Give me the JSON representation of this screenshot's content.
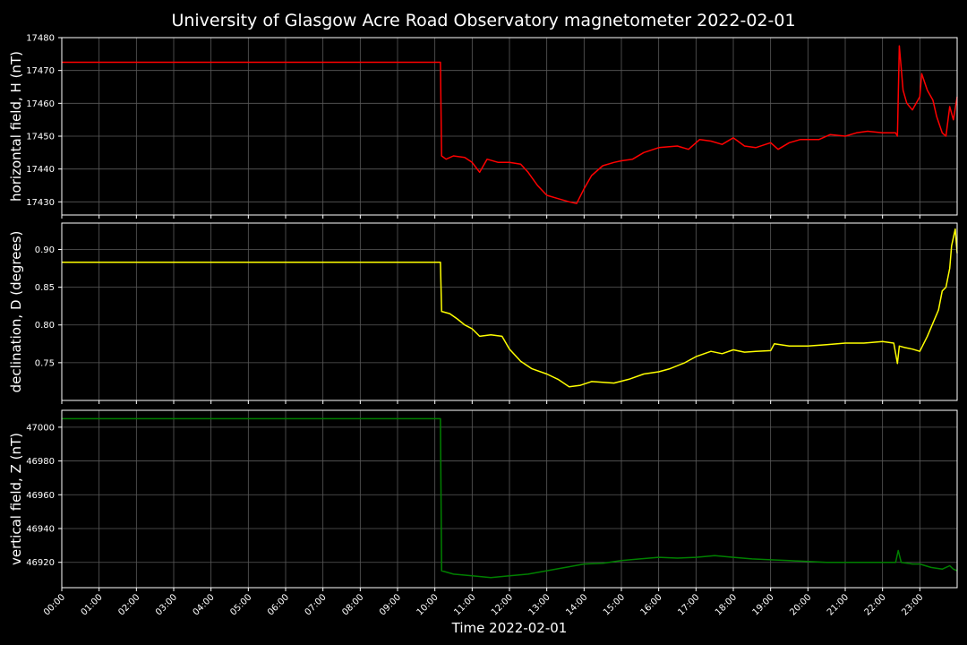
{
  "title": "University of Glasgow Acre Road Observatory magnetometer 2022-02-01",
  "xlabel": "Time 2022-02-01",
  "time_ticks": [
    "00:00",
    "01:00",
    "02:00",
    "03:00",
    "04:00",
    "05:00",
    "06:00",
    "07:00",
    "08:00",
    "09:00",
    "10:00",
    "11:00",
    "12:00",
    "13:00",
    "14:00",
    "15:00",
    "16:00",
    "17:00",
    "18:00",
    "19:00",
    "20:00",
    "21:00",
    "22:00",
    "23:00"
  ],
  "colors": {
    "background": "#000000",
    "H": "#ff0000",
    "D": "#ffff00",
    "Z": "#008000",
    "grid": "#5a5a5a"
  },
  "chart_data": [
    {
      "type": "line",
      "ylabel": "horizontal field, H (nT)",
      "ylim": [
        17426,
        17480
      ],
      "yticks": [
        17430,
        17440,
        17450,
        17460,
        17470,
        17480
      ],
      "x_range_hours": [
        0,
        24
      ],
      "x_axis": "time of day (hours)",
      "grid": true,
      "series": [
        {
          "color": "#ff0000",
          "points": [
            [
              0,
              17472.5
            ],
            [
              10.15,
              17472.5
            ],
            [
              10.18,
              17444
            ],
            [
              10.3,
              17443
            ],
            [
              10.5,
              17444
            ],
            [
              10.8,
              17443.5
            ],
            [
              11.0,
              17442
            ],
            [
              11.2,
              17439
            ],
            [
              11.4,
              17443
            ],
            [
              11.7,
              17442
            ],
            [
              12.0,
              17442
            ],
            [
              12.3,
              17441.5
            ],
            [
              12.5,
              17439
            ],
            [
              12.75,
              17435
            ],
            [
              13.0,
              17432
            ],
            [
              13.3,
              17431
            ],
            [
              13.6,
              17430
            ],
            [
              13.8,
              17429.5
            ],
            [
              14.0,
              17434
            ],
            [
              14.2,
              17438
            ],
            [
              14.5,
              17441
            ],
            [
              14.8,
              17442
            ],
            [
              15.0,
              17442.5
            ],
            [
              15.3,
              17443
            ],
            [
              15.6,
              17445
            ],
            [
              16.0,
              17446.5
            ],
            [
              16.5,
              17447
            ],
            [
              16.8,
              17446
            ],
            [
              17.1,
              17449
            ],
            [
              17.4,
              17448.5
            ],
            [
              17.7,
              17447.5
            ],
            [
              18.0,
              17449.5
            ],
            [
              18.3,
              17447
            ],
            [
              18.6,
              17446.5
            ],
            [
              19.0,
              17448
            ],
            [
              19.2,
              17446
            ],
            [
              19.5,
              17448
            ],
            [
              19.8,
              17449
            ],
            [
              20.3,
              17449
            ],
            [
              20.6,
              17450.5
            ],
            [
              21.0,
              17450
            ],
            [
              21.3,
              17451
            ],
            [
              21.6,
              17451.5
            ],
            [
              22.0,
              17451
            ],
            [
              22.35,
              17451
            ],
            [
              22.4,
              17450
            ],
            [
              22.45,
              17477.5
            ],
            [
              22.55,
              17464
            ],
            [
              22.65,
              17460
            ],
            [
              22.8,
              17458
            ],
            [
              23.0,
              17462
            ],
            [
              23.05,
              17469
            ],
            [
              23.2,
              17464
            ],
            [
              23.35,
              17461
            ],
            [
              23.45,
              17456
            ],
            [
              23.6,
              17451
            ],
            [
              23.7,
              17450
            ],
            [
              23.8,
              17459
            ],
            [
              23.9,
              17455
            ],
            [
              24.0,
              17462
            ]
          ]
        }
      ]
    },
    {
      "type": "line",
      "ylabel": "declination, D (degrees)",
      "ylim": [
        0.7,
        0.935
      ],
      "yticks": [
        0.75,
        0.8,
        0.85,
        0.9
      ],
      "x_range_hours": [
        0,
        24
      ],
      "x_axis": "time of day (hours)",
      "grid": true,
      "series": [
        {
          "color": "#ffff00",
          "points": [
            [
              0,
              0.883
            ],
            [
              10.15,
              0.883
            ],
            [
              10.18,
              0.818
            ],
            [
              10.4,
              0.815
            ],
            [
              10.6,
              0.808
            ],
            [
              10.8,
              0.8
            ],
            [
              11.0,
              0.795
            ],
            [
              11.2,
              0.785
            ],
            [
              11.5,
              0.787
            ],
            [
              11.8,
              0.785
            ],
            [
              12.0,
              0.768
            ],
            [
              12.3,
              0.752
            ],
            [
              12.6,
              0.742
            ],
            [
              13.0,
              0.735
            ],
            [
              13.3,
              0.728
            ],
            [
              13.6,
              0.718
            ],
            [
              13.9,
              0.72
            ],
            [
              14.2,
              0.725
            ],
            [
              14.5,
              0.724
            ],
            [
              14.8,
              0.723
            ],
            [
              15.2,
              0.728
            ],
            [
              15.6,
              0.735
            ],
            [
              16.0,
              0.738
            ],
            [
              16.3,
              0.742
            ],
            [
              16.7,
              0.75
            ],
            [
              17.0,
              0.758
            ],
            [
              17.4,
              0.765
            ],
            [
              17.7,
              0.762
            ],
            [
              18.0,
              0.767
            ],
            [
              18.3,
              0.764
            ],
            [
              18.6,
              0.765
            ],
            [
              19.0,
              0.766
            ],
            [
              19.1,
              0.775
            ],
            [
              19.5,
              0.772
            ],
            [
              20.0,
              0.772
            ],
            [
              20.5,
              0.774
            ],
            [
              21.0,
              0.776
            ],
            [
              21.5,
              0.776
            ],
            [
              22.0,
              0.778
            ],
            [
              22.3,
              0.776
            ],
            [
              22.4,
              0.749
            ],
            [
              22.45,
              0.772
            ],
            [
              22.6,
              0.77
            ],
            [
              22.8,
              0.768
            ],
            [
              23.0,
              0.765
            ],
            [
              23.2,
              0.785
            ],
            [
              23.5,
              0.82
            ],
            [
              23.6,
              0.845
            ],
            [
              23.7,
              0.85
            ],
            [
              23.8,
              0.875
            ],
            [
              23.85,
              0.905
            ],
            [
              23.95,
              0.927
            ],
            [
              24.0,
              0.895
            ]
          ]
        }
      ]
    },
    {
      "type": "line",
      "ylabel": "vertical field, Z (nT)",
      "ylim": [
        46905,
        47010
      ],
      "yticks": [
        46920,
        46940,
        46960,
        46980,
        47000
      ],
      "x_range_hours": [
        0,
        24
      ],
      "x_axis": "time of day (hours)",
      "grid": true,
      "series": [
        {
          "color": "#008000",
          "points": [
            [
              0,
              47005
            ],
            [
              10.15,
              47005
            ],
            [
              10.18,
              46915
            ],
            [
              10.5,
              46913
            ],
            [
              11.0,
              46912
            ],
            [
              11.5,
              46911
            ],
            [
              12.0,
              46912
            ],
            [
              12.5,
              46913
            ],
            [
              13.0,
              46915
            ],
            [
              13.5,
              46917
            ],
            [
              14.0,
              46919
            ],
            [
              14.5,
              46919.5
            ],
            [
              15.0,
              46921
            ],
            [
              15.5,
              46922
            ],
            [
              16.0,
              46923
            ],
            [
              16.5,
              46922.5
            ],
            [
              17.0,
              46923
            ],
            [
              17.5,
              46924
            ],
            [
              18.0,
              46923
            ],
            [
              18.5,
              46922
            ],
            [
              19.0,
              46921.5
            ],
            [
              19.5,
              46921
            ],
            [
              20.0,
              46920.5
            ],
            [
              20.5,
              46920
            ],
            [
              21.0,
              46920
            ],
            [
              21.5,
              46920
            ],
            [
              22.0,
              46920
            ],
            [
              22.35,
              46920
            ],
            [
              22.42,
              46927
            ],
            [
              22.5,
              46920
            ],
            [
              22.8,
              46919
            ],
            [
              23.0,
              46919
            ],
            [
              23.3,
              46917
            ],
            [
              23.6,
              46916
            ],
            [
              23.8,
              46918
            ],
            [
              23.9,
              46916
            ],
            [
              24.0,
              46915
            ]
          ]
        }
      ]
    }
  ]
}
